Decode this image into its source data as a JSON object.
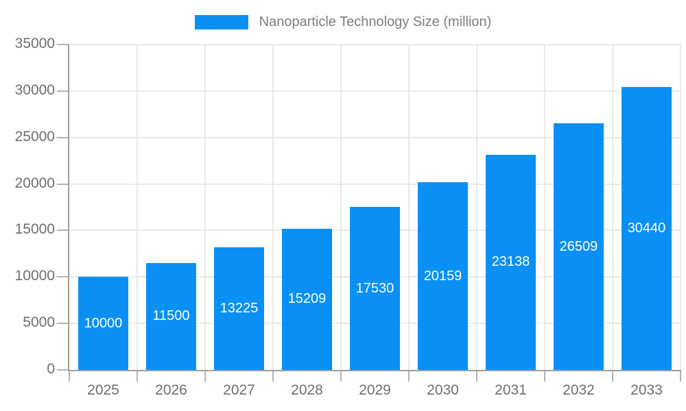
{
  "legend": {
    "label": "Nanoparticle Technology Size (million)"
  },
  "chart_data": {
    "type": "bar",
    "title": "Nanoparticle Technology Size (million)",
    "categories": [
      "2025",
      "2026",
      "2027",
      "2028",
      "2029",
      "2030",
      "2031",
      "2032",
      "2033"
    ],
    "values": [
      10000,
      11500,
      13225,
      15209,
      17530,
      20159,
      23138,
      26509,
      30440
    ],
    "series": [
      {
        "name": "Nanoparticle Technology Size (million)",
        "values": [
          10000,
          11500,
          13225,
          15209,
          17530,
          20159,
          23138,
          26509,
          30440
        ]
      }
    ],
    "xlabel": "",
    "ylabel": "",
    "ylim": [
      0,
      35000
    ],
    "yticks": [
      0,
      5000,
      10000,
      15000,
      20000,
      25000,
      30000,
      35000
    ],
    "grid": true,
    "data_labels": true,
    "legend_position": "top"
  },
  "colors": {
    "bar": "#0a90f5",
    "bar_label": "#ffffff",
    "grid": "#e9e9e9",
    "axis": "#9e9e9e",
    "tick": "#b3b3b3",
    "axis_text": "#6e6e6e",
    "legend_text": "#7d7d7d",
    "background": "#ffffff"
  }
}
